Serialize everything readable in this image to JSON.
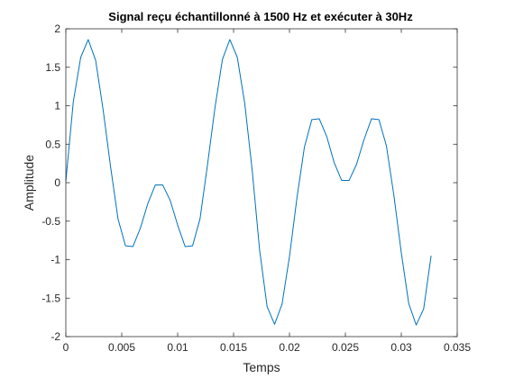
{
  "chart_data": {
    "type": "line",
    "title": "Signal reçu échantillonné à 1500 Hz et exécuter à 30Hz",
    "xlabel": "Temps",
    "ylabel": "Amplitude",
    "xlim": [
      0,
      0.035
    ],
    "ylim": [
      -2,
      2
    ],
    "x_ticks": [
      0,
      0.005,
      0.01,
      0.015,
      0.02,
      0.025,
      0.03,
      0.035
    ],
    "x_tick_labels": [
      "0",
      "0.005",
      "0.01",
      "0.015",
      "0.02",
      "0.025",
      "0.03",
      "0.035"
    ],
    "y_ticks": [
      -2,
      -1.5,
      -1,
      -0.5,
      0,
      0.5,
      1,
      1.5,
      2
    ],
    "y_tick_labels": [
      "-2",
      "-1.5",
      "-1",
      "-0.5",
      "0",
      "0.5",
      "1",
      "1.5",
      "2"
    ],
    "grid": false,
    "series": [
      {
        "color": "#0072BD",
        "x": [
          0,
          0.000667,
          0.001333,
          0.002,
          0.002667,
          0.003333,
          0.004,
          0.004667,
          0.005333,
          0.006,
          0.006667,
          0.007333,
          0.008,
          0.008667,
          0.009333,
          0.01,
          0.010667,
          0.011333,
          0.012,
          0.012667,
          0.013333,
          0.014,
          0.014667,
          0.015333,
          0.016,
          0.016667,
          0.017333,
          0.018,
          0.018667,
          0.019333,
          0.02,
          0.020667,
          0.021333,
          0.022,
          0.022667,
          0.023333,
          0.024,
          0.024667,
          0.025333,
          0.026,
          0.026667,
          0.027333,
          0.028,
          0.028667,
          0.029333,
          0.03,
          0.030667,
          0.031333,
          0.032,
          0.032667
        ],
        "y": [
          0.02,
          1.05,
          1.63,
          1.86,
          1.59,
          0.95,
          0.21,
          -0.47,
          -0.82,
          -0.83,
          -0.59,
          -0.27,
          -0.03,
          -0.03,
          -0.23,
          -0.55,
          -0.83,
          -0.82,
          -0.47,
          0.23,
          0.97,
          1.6,
          1.86,
          1.63,
          1.03,
          0.16,
          -0.88,
          -1.61,
          -1.84,
          -1.58,
          -0.96,
          -0.2,
          0.46,
          0.82,
          0.83,
          0.6,
          0.26,
          0.03,
          0.03,
          0.24,
          0.56,
          0.83,
          0.82,
          0.48,
          -0.16,
          -0.91,
          -1.57,
          -1.85,
          -1.64,
          -0.95
        ]
      }
    ]
  }
}
